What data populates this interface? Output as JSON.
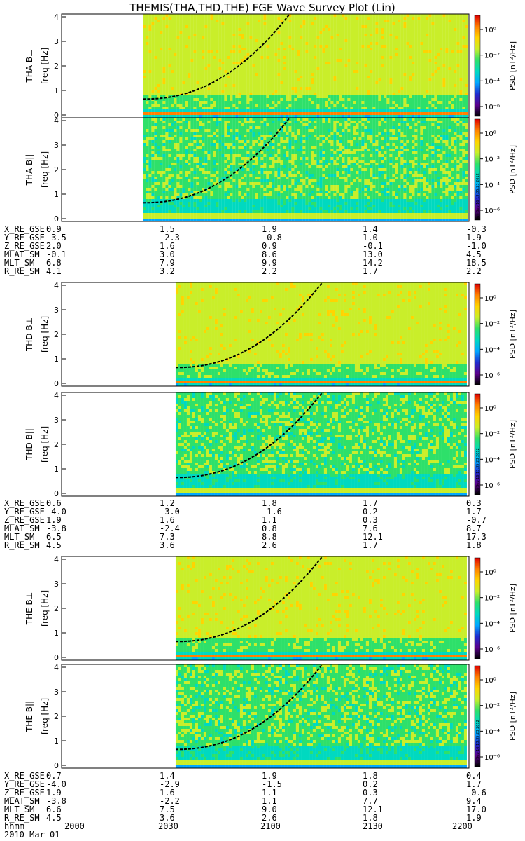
{
  "title": "THEMIS(THA,THD,THE) FGE Wave Survey Plot (Lin)",
  "colorbar": {
    "label": "PSD [nT²/Hz]",
    "ticks": [
      "10⁰",
      "10⁻²",
      "10⁻⁴",
      "10⁻⁶"
    ],
    "colors": [
      "#000000",
      "#5a008c",
      "#1f2ccf",
      "#00a8ff",
      "#00d9c0",
      "#2ee06a",
      "#c9ee2a",
      "#ffd400",
      "#ff8000",
      "#e00000"
    ]
  },
  "stamp": "Sun Sep 16 13:35:23 2012",
  "date_label": "2010 Mar 01",
  "time_ticks": [
    "2000",
    "2030",
    "2100",
    "2130",
    "2200"
  ],
  "panels": [
    {
      "probe": "THA",
      "component": "B⊥",
      "ylabel": "THA B⊥",
      "unit": "freq [Hz]",
      "data_start": 0.2,
      "hot": true
    },
    {
      "probe": "THA",
      "component": "B||",
      "ylabel": "THA B||",
      "unit": "freq [Hz]",
      "data_start": 0.2,
      "hot": false
    },
    {
      "probe": "THD",
      "component": "B⊥",
      "ylabel": "THD B⊥",
      "unit": "freq [Hz]",
      "data_start": 0.28,
      "hot": true
    },
    {
      "probe": "THD",
      "component": "B||",
      "ylabel": "THD B||",
      "unit": "freq [Hz]",
      "data_start": 0.28,
      "hot": false
    },
    {
      "probe": "THE",
      "component": "B⊥",
      "ylabel": "THE B⊥",
      "unit": "freq [Hz]",
      "data_start": 0.28,
      "hot": true
    },
    {
      "probe": "THE",
      "component": "B||",
      "ylabel": "THE B||",
      "unit": "freq [Hz]",
      "data_start": 0.28,
      "hot": false
    }
  ],
  "ephemeris": [
    {
      "probe": "THA",
      "rows": [
        {
          "label": "X_RE_GSE",
          "values": [
            "0.9",
            "1.5",
            "1.9",
            "1.4",
            "-0.3"
          ]
        },
        {
          "label": "Y_RE_GSE",
          "values": [
            "-3.5",
            "-2.3",
            "-0.8",
            "1.0",
            "1.9"
          ]
        },
        {
          "label": "Z_RE_GSE",
          "values": [
            "2.0",
            "1.6",
            "0.9",
            "-0.1",
            "-1.0"
          ]
        },
        {
          "label": "MLAT_SM",
          "values": [
            "-0.1",
            "3.0",
            "8.6",
            "13.0",
            "4.5"
          ]
        },
        {
          "label": "MLT_SM",
          "values": [
            "6.8",
            "7.9",
            "9.9",
            "14.2",
            "18.5"
          ]
        },
        {
          "label": "R_RE_SM",
          "values": [
            "4.1",
            "3.2",
            "2.2",
            "1.7",
            "2.2"
          ]
        }
      ]
    },
    {
      "probe": "THD",
      "rows": [
        {
          "label": "X_RE_GSE",
          "values": [
            "0.6",
            "1.2",
            "1.8",
            "1.7",
            "0.3"
          ]
        },
        {
          "label": "Y_RE_GSE",
          "values": [
            "-4.0",
            "-3.0",
            "-1.6",
            "0.2",
            "1.7"
          ]
        },
        {
          "label": "Z_RE_GSE",
          "values": [
            "1.9",
            "1.6",
            "1.1",
            "0.3",
            "-0.7"
          ]
        },
        {
          "label": "MLAT_SM",
          "values": [
            "-3.8",
            "-2.4",
            "0.8",
            "7.6",
            "8.7"
          ]
        },
        {
          "label": "MLT_SM",
          "values": [
            "6.5",
            "7.3",
            "8.8",
            "12.1",
            "17.3"
          ]
        },
        {
          "label": "R_RE_SM",
          "values": [
            "4.5",
            "3.6",
            "2.6",
            "1.7",
            "1.8"
          ]
        }
      ]
    },
    {
      "probe": "THE",
      "rows": [
        {
          "label": "X_RE_GSE",
          "values": [
            "0.7",
            "1.4",
            "1.9",
            "1.8",
            "0.4"
          ]
        },
        {
          "label": "Y_RE_GSE",
          "values": [
            "-4.0",
            "-2.9",
            "-1.5",
            "0.2",
            "1.7"
          ]
        },
        {
          "label": "Z_RE_GSE",
          "values": [
            "1.9",
            "1.6",
            "1.1",
            "0.3",
            "-0.6"
          ]
        },
        {
          "label": "MLAT_SM",
          "values": [
            "-3.8",
            "-2.2",
            "1.1",
            "7.7",
            "9.4"
          ]
        },
        {
          "label": "MLT_SM",
          "values": [
            "6.6",
            "7.5",
            "9.0",
            "12.1",
            "17.0"
          ]
        },
        {
          "label": "R_RE_SM",
          "values": [
            "4.5",
            "3.6",
            "2.6",
            "1.8",
            "1.9"
          ]
        }
      ]
    }
  ],
  "hhmm_label": "hhmm",
  "chart_data": {
    "type": "heatmap",
    "title": "THEMIS(THA,THD,THE) FGE Wave Survey Plot (Lin)",
    "x_ticks": [
      "2000",
      "2030",
      "2100",
      "2130",
      "2200"
    ],
    "y_range": [
      0,
      4
    ],
    "y_ticks": [
      0,
      1,
      2,
      3,
      4
    ],
    "ylabel": "freq [Hz]",
    "colorbar_label": "PSD [nT²/Hz]",
    "colorbar_ticks": [
      "10⁰",
      "10⁻²",
      "10⁻⁴",
      "10⁻⁶"
    ]
  }
}
